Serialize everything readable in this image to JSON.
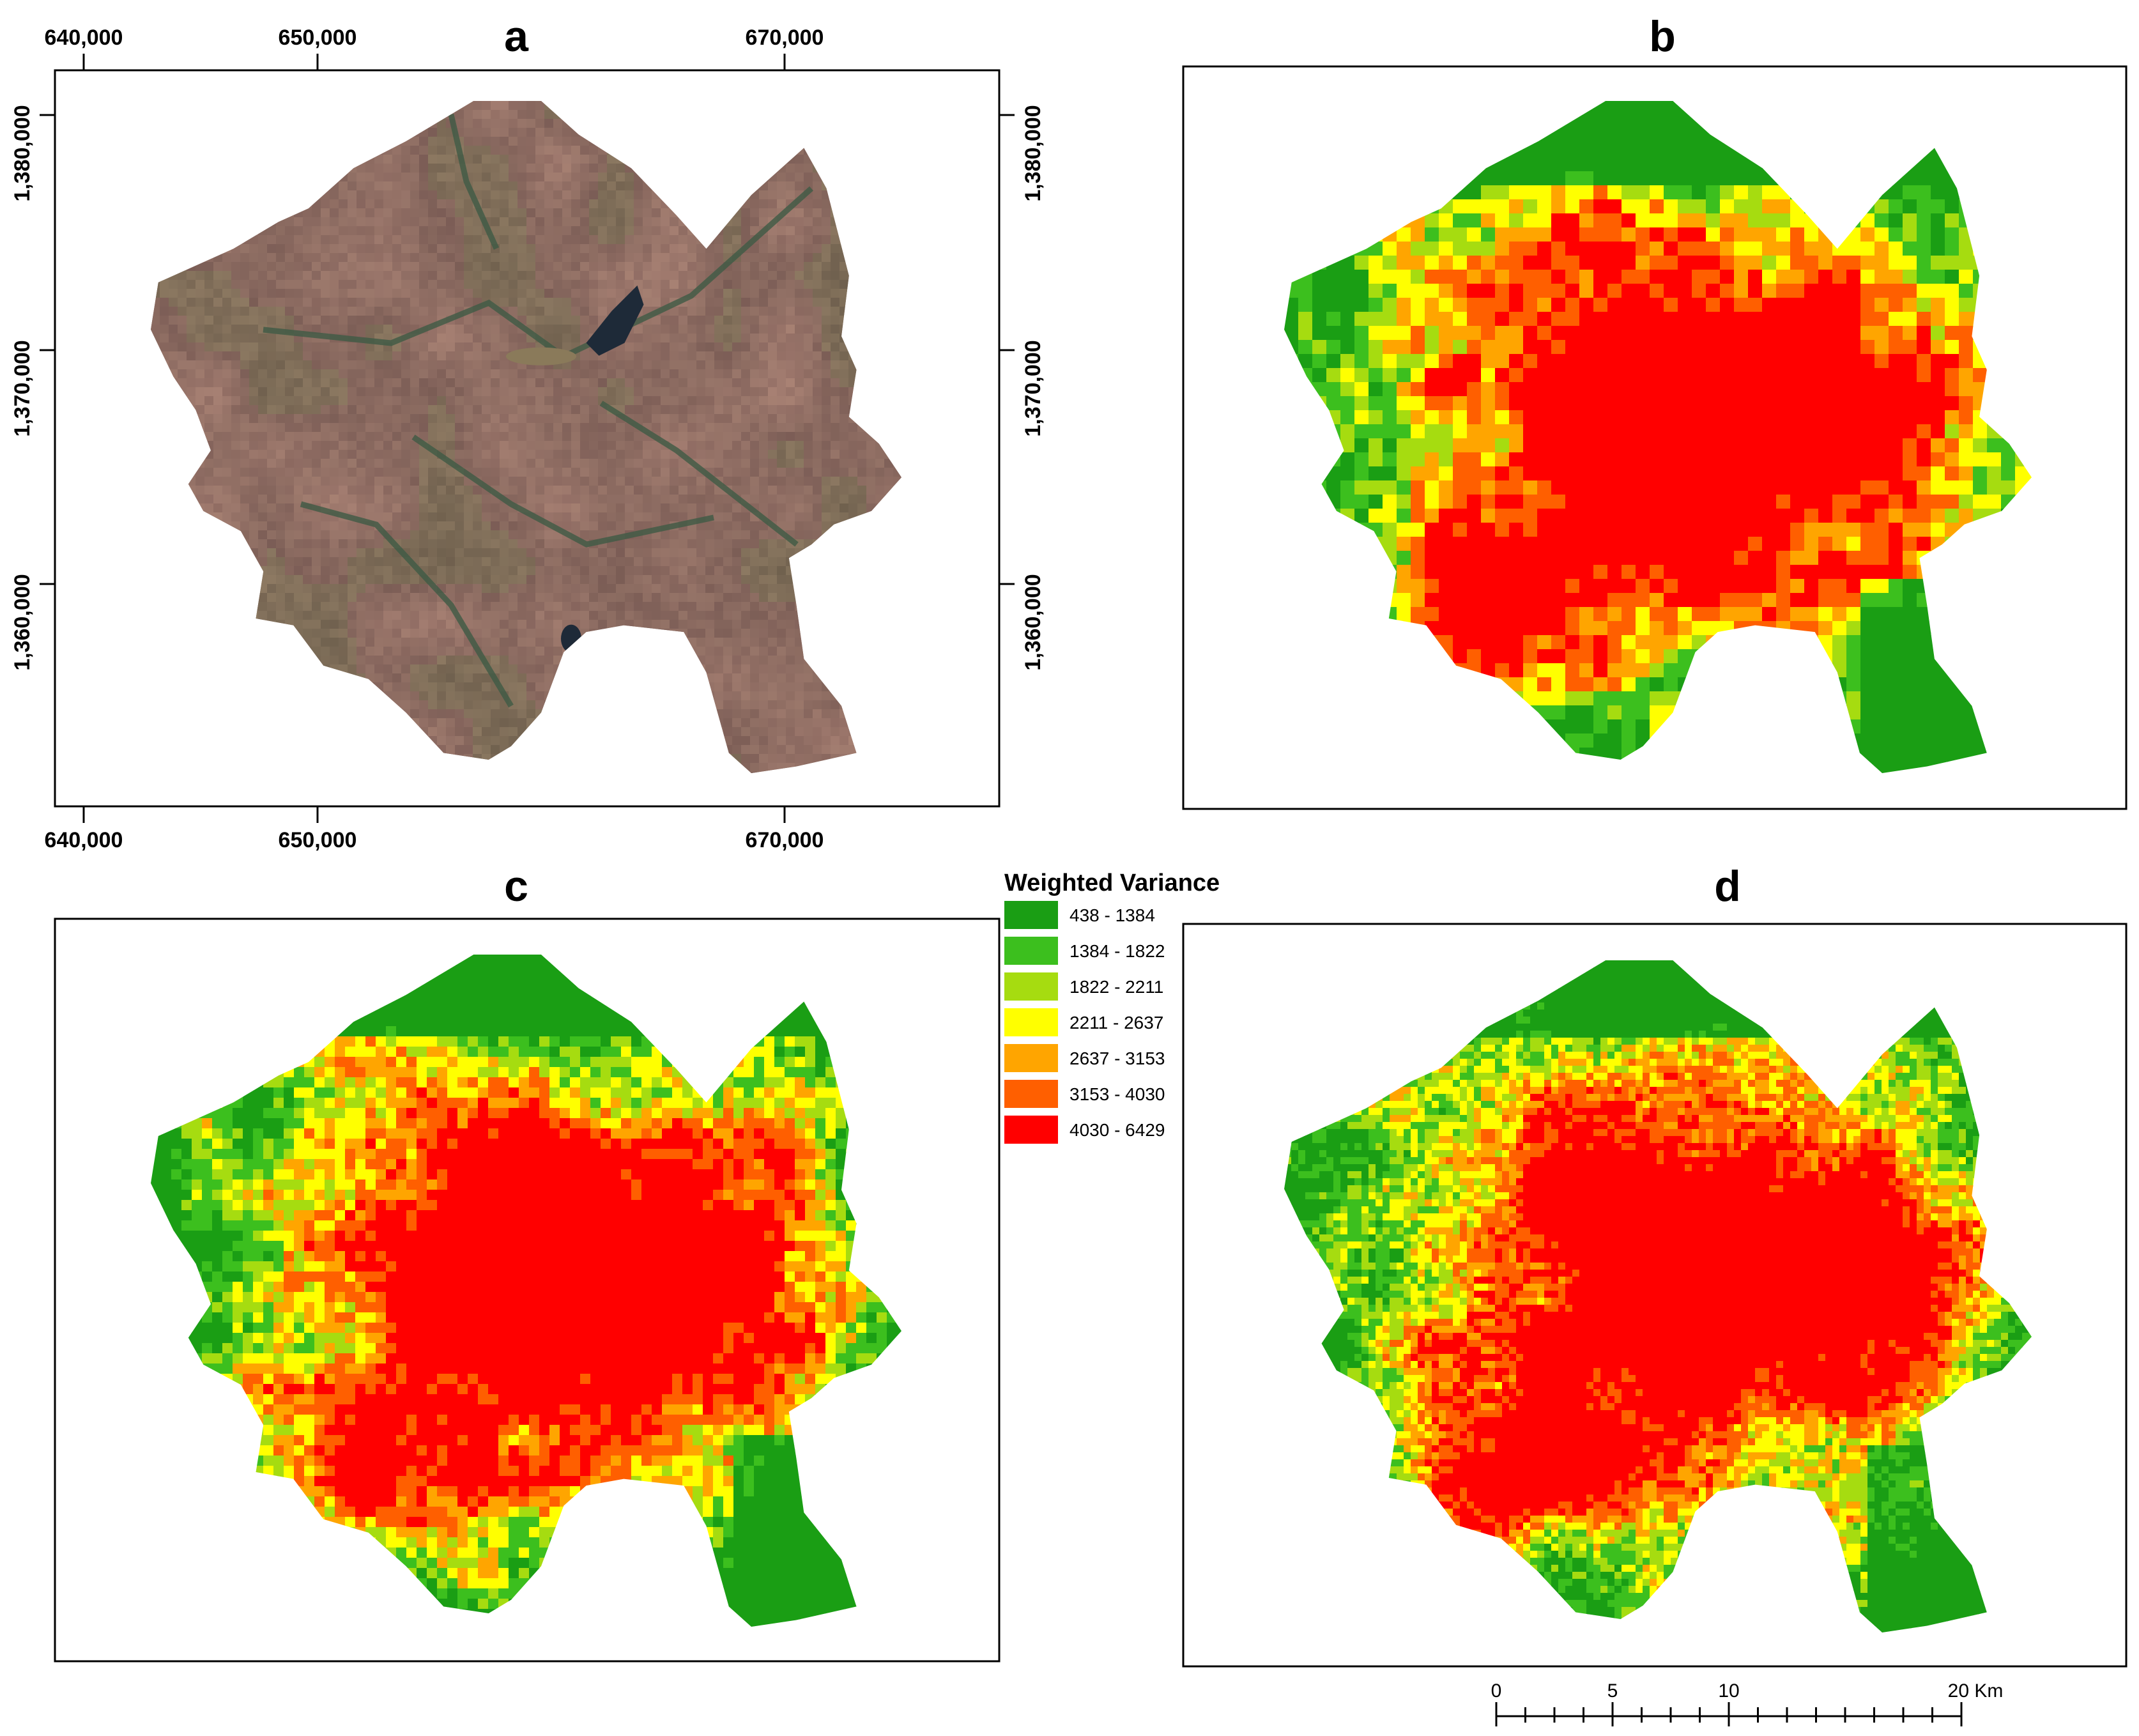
{
  "panels": [
    {
      "letter": "a",
      "kind": "satellite"
    },
    {
      "letter": "b",
      "kind": "variance",
      "cell": 22
    },
    {
      "letter": "c",
      "kind": "variance",
      "cell": 16
    },
    {
      "letter": "d",
      "kind": "variance",
      "cell": 11
    }
  ],
  "coordinates": {
    "x_ticks": [
      "640,000",
      "650,000",
      "670,000"
    ],
    "y_ticks": [
      "1,380,000",
      "1,370,000",
      "1,360,000"
    ]
  },
  "legend": {
    "title": "Weighted Variance",
    "classes": [
      {
        "label": "438 - 1384",
        "color": "#1a9e14"
      },
      {
        "label": "1384 - 1822",
        "color": "#3cbf1e"
      },
      {
        "label": "1822 - 2211",
        "color": "#a6dc10"
      },
      {
        "label": "2211 - 2637",
        "color": "#ffff00"
      },
      {
        "label": "2637 - 3153",
        "color": "#ffa500"
      },
      {
        "label": "3153 - 4030",
        "color": "#ff5f00"
      },
      {
        "label": "4030 - 6429",
        "color": "#ff0000"
      }
    ]
  },
  "scale_bar": {
    "labels": [
      "0",
      "5",
      "10",
      "20 Km"
    ]
  },
  "colors": {
    "satellite_base": "#8a6a5f",
    "water": "#1e2a38"
  }
}
